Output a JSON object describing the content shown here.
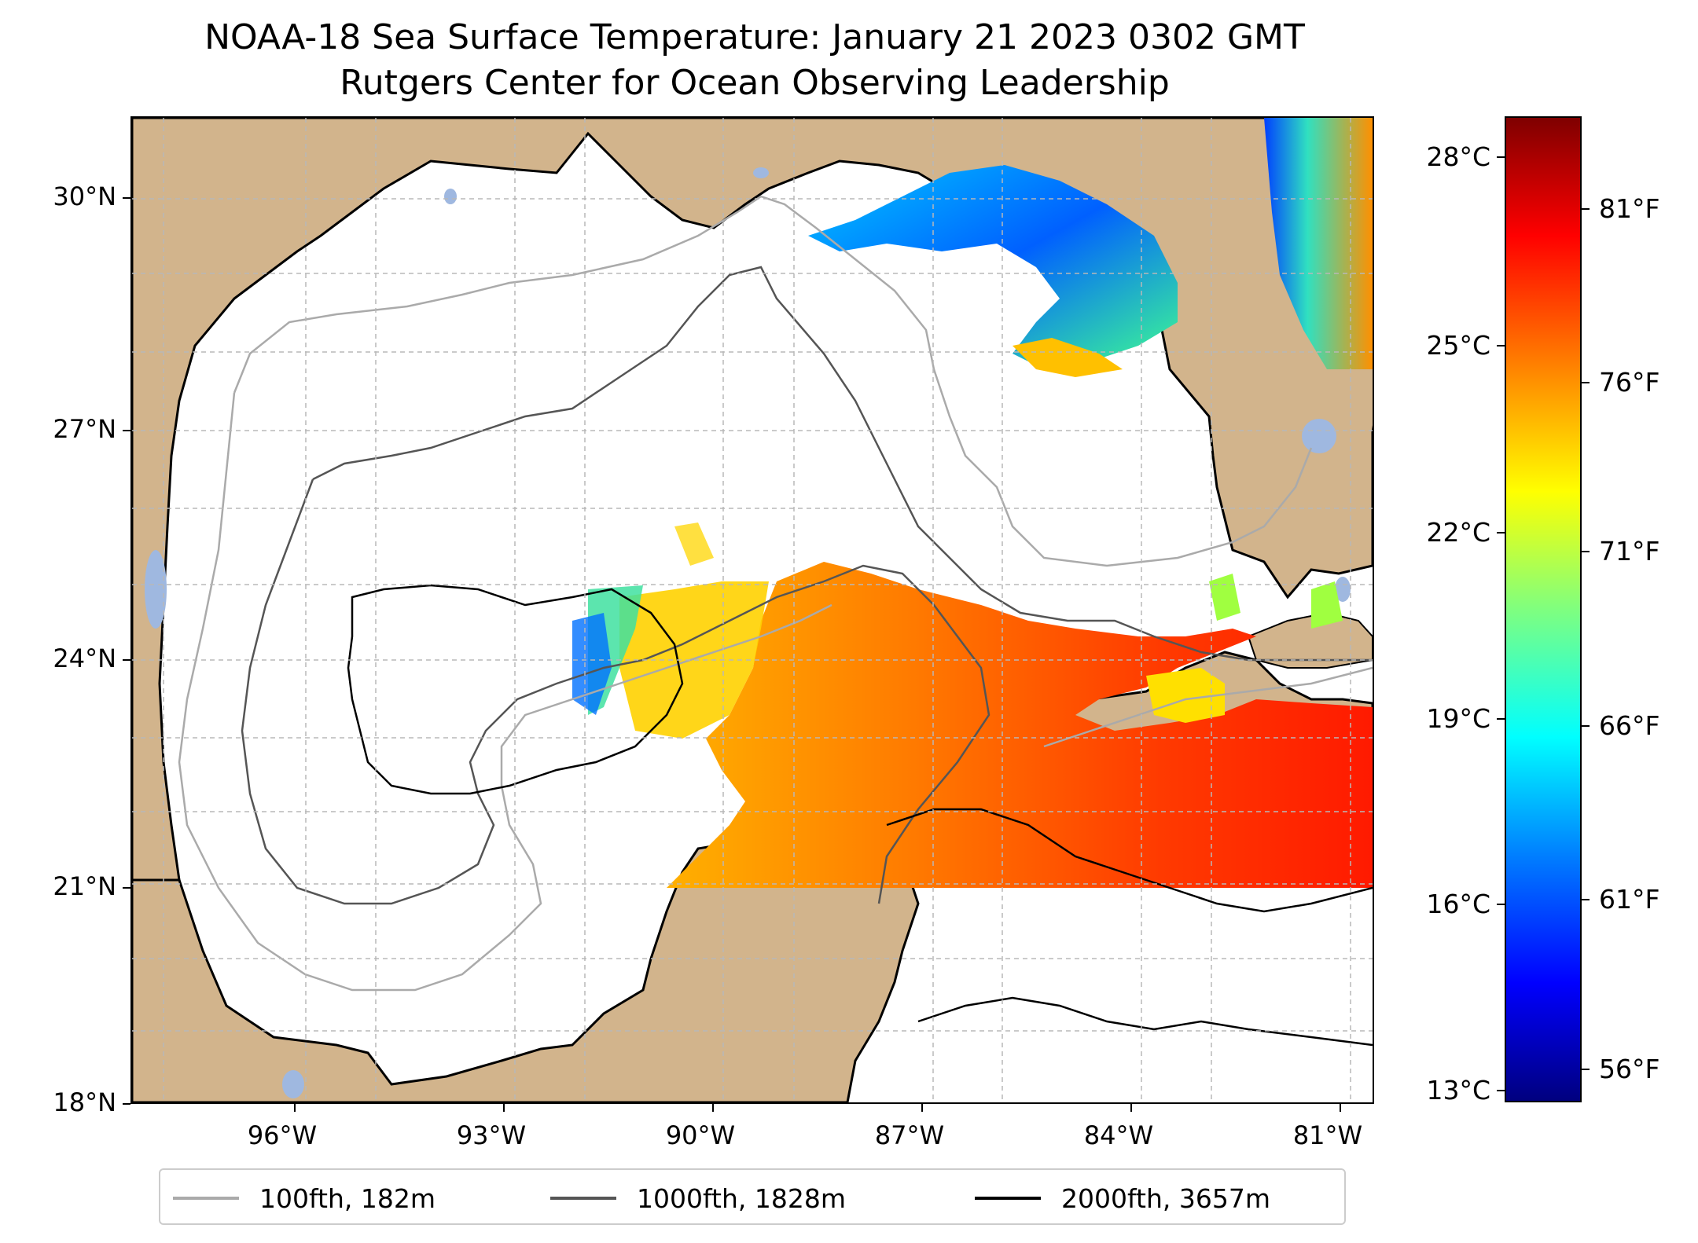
{
  "title": {
    "line1": "NOAA-18 Sea Surface Temperature: January 21 2023 0302 GMT",
    "line2": "Rutgers Center for Ocean Observing Leadership"
  },
  "map": {
    "latitude_labels": [
      "30°N",
      "27°N",
      "24°N",
      "21°N",
      "18°N"
    ],
    "longitude_labels": [
      "96°W",
      "93°W",
      "90°W",
      "87°W",
      "84°W",
      "81°W"
    ],
    "colors": {
      "land": "#d2b48c",
      "lakes": "#9fb8e0",
      "coastline": "#000000",
      "gridline": "#b0b0b0",
      "contour_100fth": "#aaaaaa",
      "contour_1000fth": "#555555",
      "contour_2000fth": "#000000"
    },
    "sst_colormap": "jet"
  },
  "colorbar": {
    "celsius_labels": [
      "28°C",
      "25°C",
      "22°C",
      "19°C",
      "16°C",
      "13°C"
    ],
    "fahrenheit_labels": [
      "81°F",
      "76°F",
      "71°F",
      "66°F",
      "61°F",
      "56°F"
    ],
    "range_celsius": [
      12.8,
      28.6
    ]
  },
  "legend": {
    "items": [
      {
        "label": "100fth, 182m",
        "color": "#aaaaaa"
      },
      {
        "label": "1000fth, 1828m",
        "color": "#555555"
      },
      {
        "label": "2000fth, 3657m",
        "color": "#000000"
      }
    ]
  }
}
